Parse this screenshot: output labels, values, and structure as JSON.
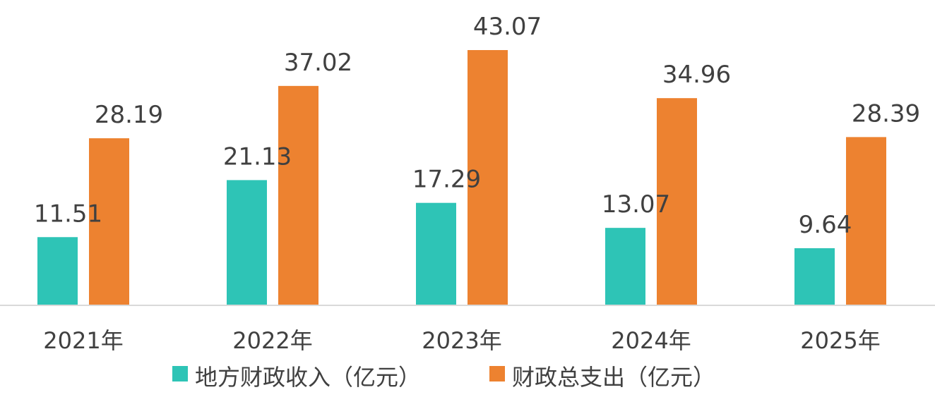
{
  "chart_data": {
    "type": "bar",
    "categories": [
      "2021年",
      "2022年",
      "2023年",
      "2024年",
      "2025年"
    ],
    "series": [
      {
        "name": "地方财政收入（亿元）",
        "values": [
          11.51,
          21.13,
          17.29,
          13.07,
          9.64
        ],
        "color": "#2ec4b6"
      },
      {
        "name": "财政总支出（亿元）",
        "values": [
          28.19,
          37.02,
          43.07,
          34.96,
          28.39
        ],
        "color": "#ed8230"
      }
    ],
    "data_labels": true,
    "grid": false,
    "legend_position": "bottom"
  }
}
